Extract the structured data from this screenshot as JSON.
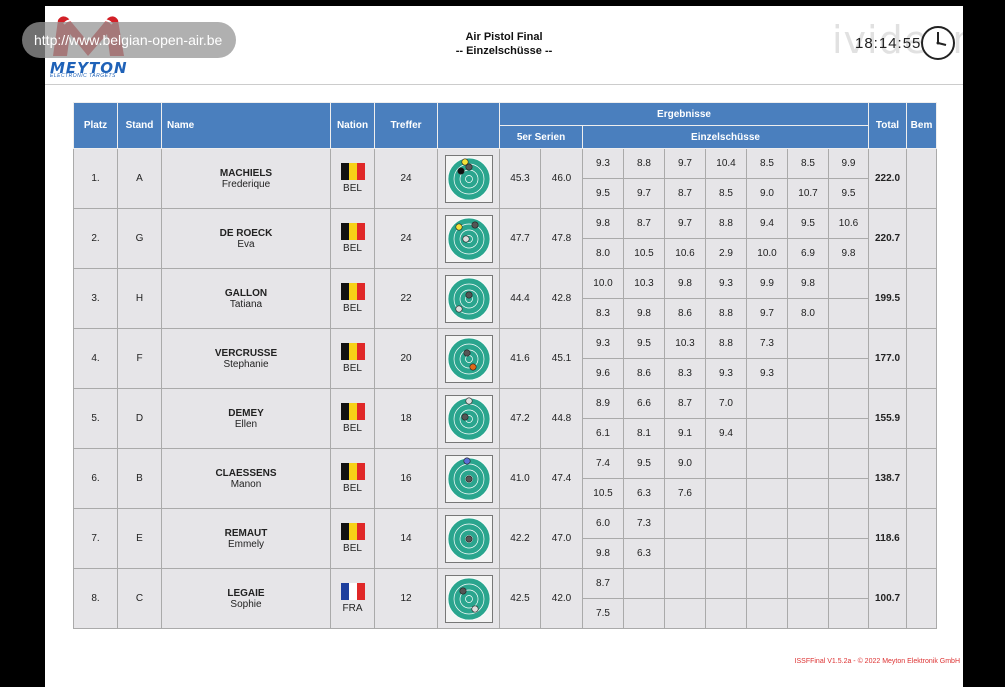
{
  "overlay": {
    "url": "http://www.belgian-open-air.be",
    "watermark": "ivideon"
  },
  "logo": {
    "brand": "MEYTON",
    "subtitle": "ELECTRONIC TARGETS"
  },
  "header": {
    "title": "Air Pistol Final",
    "subtitle": "-- Einzelschüsse --",
    "time": "18:14:55"
  },
  "table": {
    "columns": {
      "platz": "Platz",
      "stand": "Stand",
      "name": "Name",
      "nation": "Nation",
      "treffer": "Treffer",
      "ergebnisse": "Ergebnisse",
      "series": "5er Serien",
      "einzel": "Einzelschüsse",
      "total": "Total",
      "bem": "Bem"
    },
    "rows": [
      {
        "place": "1.",
        "stand": "A",
        "last": "MACHIELS",
        "first": "Frederique",
        "nation": "BEL",
        "flag": "bel",
        "hits": "24",
        "s1": "45.3",
        "s2": "46.0",
        "shots_top": [
          "9.3",
          "8.8",
          "9.7",
          "10.4",
          "8.5",
          "8.5",
          "9.9"
        ],
        "shots_bottom": [
          "9.5",
          "9.7",
          "8.7",
          "8.5",
          "9.0",
          "10.7",
          "9.5"
        ],
        "total": "222.0"
      },
      {
        "place": "2.",
        "stand": "G",
        "last": "DE ROECK",
        "first": "Eva",
        "nation": "BEL",
        "flag": "bel",
        "hits": "24",
        "s1": "47.7",
        "s2": "47.8",
        "shots_top": [
          "9.8",
          "8.7",
          "9.7",
          "8.8",
          "9.4",
          "9.5",
          "10.6"
        ],
        "shots_bottom": [
          "8.0",
          "10.5",
          "10.6",
          "2.9",
          "10.0",
          "6.9",
          "9.8"
        ],
        "total": "220.7"
      },
      {
        "place": "3.",
        "stand": "H",
        "last": "GALLON",
        "first": "Tatiana",
        "nation": "BEL",
        "flag": "bel",
        "hits": "22",
        "s1": "44.4",
        "s2": "42.8",
        "shots_top": [
          "10.0",
          "10.3",
          "9.8",
          "9.3",
          "9.9",
          "9.8",
          ""
        ],
        "shots_bottom": [
          "8.3",
          "9.8",
          "8.6",
          "8.8",
          "9.7",
          "8.0",
          ""
        ],
        "total": "199.5"
      },
      {
        "place": "4.",
        "stand": "F",
        "last": "VERCRUSSE",
        "first": "Stephanie",
        "nation": "BEL",
        "flag": "bel",
        "hits": "20",
        "s1": "41.6",
        "s2": "45.1",
        "shots_top": [
          "9.3",
          "9.5",
          "10.3",
          "8.8",
          "7.3",
          "",
          ""
        ],
        "shots_bottom": [
          "9.6",
          "8.6",
          "8.3",
          "9.3",
          "9.3",
          "",
          ""
        ],
        "total": "177.0"
      },
      {
        "place": "5.",
        "stand": "D",
        "last": "DEMEY",
        "first": "Ellen",
        "nation": "BEL",
        "flag": "bel",
        "hits": "18",
        "s1": "47.2",
        "s2": "44.8",
        "shots_top": [
          "8.9",
          "6.6",
          "8.7",
          "7.0",
          "",
          "",
          ""
        ],
        "shots_bottom": [
          "6.1",
          "8.1",
          "9.1",
          "9.4",
          "",
          "",
          ""
        ],
        "total": "155.9"
      },
      {
        "place": "6.",
        "stand": "B",
        "last": "CLAESSENS",
        "first": "Manon",
        "nation": "BEL",
        "flag": "bel",
        "hits": "16",
        "s1": "41.0",
        "s2": "47.4",
        "shots_top": [
          "7.4",
          "9.5",
          "9.0",
          "",
          "",
          "",
          ""
        ],
        "shots_bottom": [
          "10.5",
          "6.3",
          "7.6",
          "",
          "",
          "",
          ""
        ],
        "total": "138.7"
      },
      {
        "place": "7.",
        "stand": "E",
        "last": "REMAUT",
        "first": "Emmely",
        "nation": "BEL",
        "flag": "bel",
        "hits": "14",
        "s1": "42.2",
        "s2": "47.0",
        "shots_top": [
          "6.0",
          "7.3",
          "",
          "",
          "",
          "",
          ""
        ],
        "shots_bottom": [
          "9.8",
          "6.3",
          "",
          "",
          "",
          "",
          ""
        ],
        "total": "118.6"
      },
      {
        "place": "8.",
        "stand": "C",
        "last": "LEGAIE",
        "first": "Sophie",
        "nation": "FRA",
        "flag": "fra",
        "hits": "12",
        "s1": "42.5",
        "s2": "42.0",
        "shots_top": [
          "8.7",
          "",
          "",
          "",
          "",
          "",
          ""
        ],
        "shots_bottom": [
          "7.5",
          "",
          "",
          "",
          "",
          "",
          ""
        ],
        "total": "100.7"
      }
    ]
  },
  "footer": "ISSFFinal V1.5.2a - © 2022 Meyton Elektronik GmbH",
  "colors": {
    "header_bg": "#4a7fbe",
    "cell_bg": "#e6e5e8",
    "target_green": "#2aa58e",
    "brand_red": "#d22027",
    "brand_blue": "#1f62b8"
  }
}
